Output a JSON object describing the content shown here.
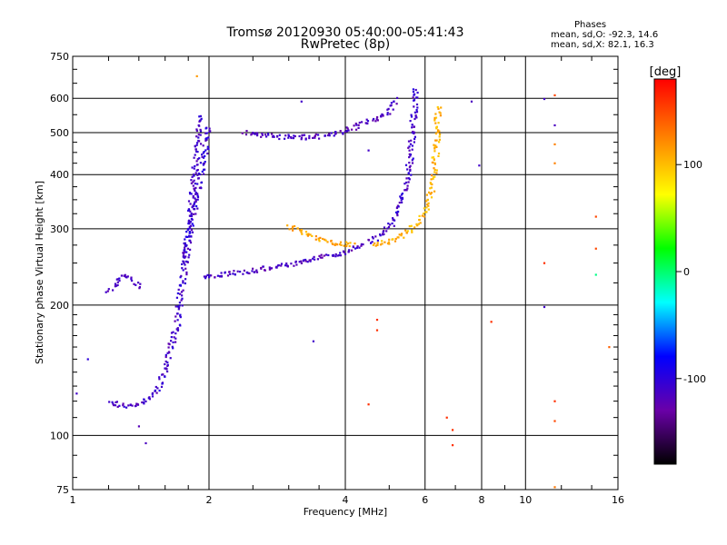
{
  "header": {
    "title_line1": "Tromsø 20120930 05:40:00-05:41:43",
    "title_line2": "RwPretec (8p)",
    "phases_title": "Phases",
    "phases_o": "mean, sd,O: -92.3, 14.6",
    "phases_x": "mean, sd,X:  82.1, 16.3"
  },
  "colorbar": {
    "unit_label": "[deg]",
    "tick_values": [
      100,
      0,
      -100
    ],
    "range": [
      -180,
      180
    ],
    "stops": [
      "#000000",
      "#6a00a8",
      "#0000ff",
      "#00ffff",
      "#00ff00",
      "#ffff00",
      "#ff8000",
      "#ff0000"
    ]
  },
  "chart_data": {
    "type": "scatter",
    "title": "Tromsø 20120930 05:40:00-05:41:43",
    "subtitle": "RwPretec (8p)",
    "xlabel": "Frequency [MHz]",
    "ylabel": "Stationary phase Virtual Height [km]",
    "xscale": "log",
    "yscale": "log",
    "xlim": [
      1,
      16
    ],
    "ylim": [
      75,
      750
    ],
    "x_ticks": [
      1,
      2,
      4,
      6,
      8,
      10,
      16
    ],
    "x_tick_labels": [
      "1",
      "2",
      "4",
      "6",
      "8",
      "10",
      "16"
    ],
    "y_ticks": [
      75,
      100,
      200,
      300,
      400,
      500,
      600,
      750
    ],
    "y_tick_labels": [
      "75",
      "100",
      "200",
      "300",
      "400",
      "500",
      "600",
      "750"
    ],
    "grid": true,
    "color_variable": "phase [deg]",
    "traces": [
      {
        "x": [
          1.2,
          1.25,
          1.3,
          1.35,
          1.4,
          1.45,
          1.52,
          1.6,
          1.65,
          1.7,
          1.72,
          1.74,
          1.76,
          1.78,
          1.8,
          1.82,
          1.84,
          1.86,
          1.88,
          1.9,
          1.92
        ],
        "y": [
          119,
          118,
          117,
          117,
          118,
          120,
          125,
          140,
          160,
          180,
          200,
          220,
          240,
          260,
          290,
          320,
          360,
          400,
          450,
          500,
          550
        ],
        "phase": -110
      },
      {
        "x": [
          1.95,
          2.05,
          2.2,
          2.5,
          2.8,
          3.1,
          3.4,
          3.7,
          4.0,
          4.2,
          4.4
        ],
        "y": [
          232,
          234,
          236,
          240,
          245,
          250,
          255,
          260,
          265,
          270,
          275
        ],
        "phase": -115
      },
      {
        "x": [
          4.5,
          4.8,
          5.1,
          5.3,
          5.45,
          5.55,
          5.62,
          5.68,
          5.73
        ],
        "y": [
          280,
          290,
          310,
          340,
          380,
          430,
          490,
          560,
          640
        ],
        "phase": -110
      },
      {
        "x": [
          2.4,
          2.7,
          3.0,
          3.3,
          3.6,
          3.9,
          4.2,
          4.5,
          4.9,
          5.2
        ],
        "y": [
          500,
          492,
          488,
          488,
          492,
          500,
          515,
          530,
          550,
          600
        ],
        "phase": -115
      },
      {
        "x": [
          3.0,
          3.2,
          3.4,
          3.6,
          3.8,
          4.0,
          4.2
        ],
        "y": [
          305,
          295,
          288,
          282,
          278,
          276,
          275
        ],
        "phase": 110
      },
      {
        "x": [
          4.6,
          5.0,
          5.4,
          5.8,
          6.1,
          6.25,
          6.35,
          6.4
        ],
        "y": [
          275,
          280,
          290,
          310,
          340,
          390,
          460,
          580
        ],
        "phase": 105
      },
      {
        "x": [
          1.2,
          1.25,
          1.3,
          1.35,
          1.42
        ],
        "y": [
          215,
          225,
          235,
          228,
          220
        ],
        "phase": -110
      },
      {
        "x": [
          1.75,
          1.8,
          1.85,
          1.9,
          1.95,
          2.0
        ],
        "y": [
          250,
          280,
          330,
          380,
          440,
          520
        ],
        "phase": -105
      }
    ],
    "points": [
      {
        "x": 1.88,
        "y": 675,
        "phase": 115
      },
      {
        "x": 3.2,
        "y": 590,
        "phase": -110
      },
      {
        "x": 3.4,
        "y": 165,
        "phase": -110
      },
      {
        "x": 1.4,
        "y": 105,
        "phase": -120
      },
      {
        "x": 1.45,
        "y": 96,
        "phase": -115
      },
      {
        "x": 4.5,
        "y": 455,
        "phase": -110
      },
      {
        "x": 4.7,
        "y": 185,
        "phase": 160
      },
      {
        "x": 4.7,
        "y": 175,
        "phase": 160
      },
      {
        "x": 4.5,
        "y": 118,
        "phase": 160
      },
      {
        "x": 6.7,
        "y": 110,
        "phase": 160
      },
      {
        "x": 6.9,
        "y": 103,
        "phase": 160
      },
      {
        "x": 6.9,
        "y": 95,
        "phase": 160
      },
      {
        "x": 7.6,
        "y": 590,
        "phase": -115
      },
      {
        "x": 7.9,
        "y": 420,
        "phase": -110
      },
      {
        "x": 8.4,
        "y": 183,
        "phase": 160
      },
      {
        "x": 11.0,
        "y": 598,
        "phase": -110
      },
      {
        "x": 11.0,
        "y": 250,
        "phase": 160
      },
      {
        "x": 11.0,
        "y": 198,
        "phase": -110
      },
      {
        "x": 11.6,
        "y": 610,
        "phase": 150
      },
      {
        "x": 11.6,
        "y": 520,
        "phase": -115
      },
      {
        "x": 11.6,
        "y": 470,
        "phase": 125
      },
      {
        "x": 11.6,
        "y": 425,
        "phase": 125
      },
      {
        "x": 11.6,
        "y": 120,
        "phase": 160
      },
      {
        "x": 11.6,
        "y": 108,
        "phase": 150
      },
      {
        "x": 11.6,
        "y": 76,
        "phase": 130
      },
      {
        "x": 14.3,
        "y": 320,
        "phase": 150
      },
      {
        "x": 14.3,
        "y": 270,
        "phase": 150
      },
      {
        "x": 14.3,
        "y": 235,
        "phase": -5
      },
      {
        "x": 15.3,
        "y": 160,
        "phase": 140
      },
      {
        "x": 1.08,
        "y": 150,
        "phase": -100
      },
      {
        "x": 1.02,
        "y": 125,
        "phase": -110
      }
    ]
  }
}
